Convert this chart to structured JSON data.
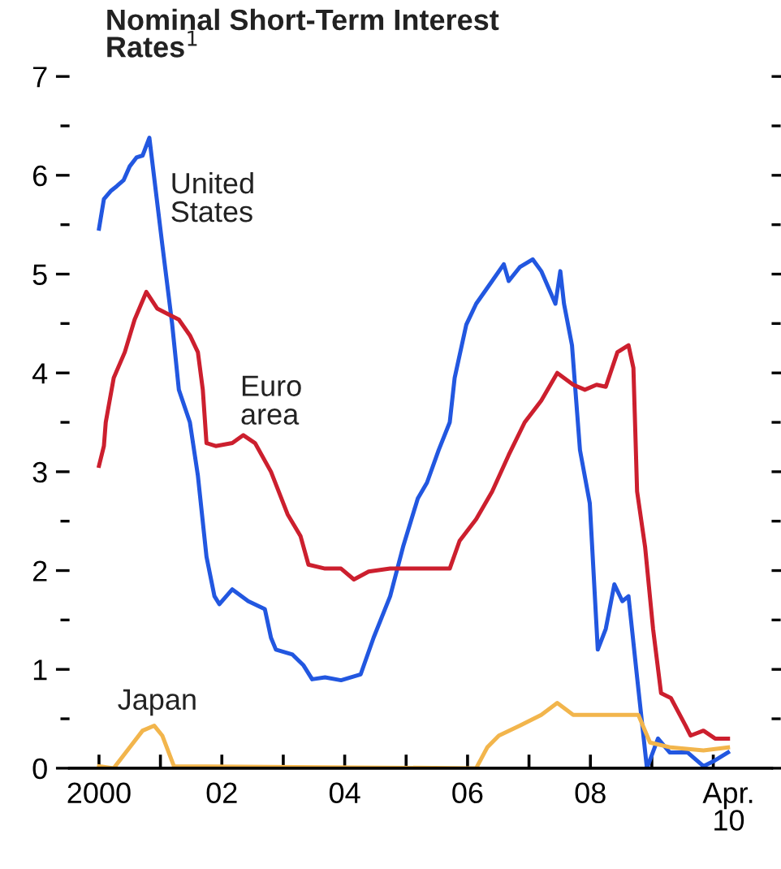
{
  "chart_data": {
    "type": "line",
    "title": "Nominal Short-Term Interest\nRates$^{1}$",
    "xlim": [
      1999.52,
      2010.95
    ],
    "ylim": [
      0,
      7
    ],
    "xticks": [
      2000,
      {
        "value": 2001,
        "label": null
      },
      {
        "value": 2002,
        "label": "02"
      },
      {
        "value": 2003,
        "label": null
      },
      {
        "value": 2004,
        "label": "04"
      },
      {
        "value": 2005,
        "label": null
      },
      {
        "value": 2006,
        "label": "06"
      },
      {
        "value": 2007,
        "label": null
      },
      {
        "value": 2008,
        "label": "08"
      },
      {
        "value": 2009,
        "label": null
      },
      {
        "value": 2010,
        "label": null
      },
      {
        "value": 2010.25,
        "label": "Apr.\n10"
      }
    ],
    "yticks": [
      0,
      {
        "value": 0.5,
        "label": null
      },
      1,
      {
        "value": 1.5,
        "label": null
      },
      2,
      {
        "value": 2.5,
        "label": null
      },
      3,
      {
        "value": 3.5,
        "label": null
      },
      4,
      {
        "value": 4.5,
        "label": null
      },
      5,
      {
        "value": 5.5,
        "label": null
      },
      6,
      {
        "value": 6.5,
        "label": null
      },
      7
    ],
    "grid": false,
    "legend": false,
    "series": [
      {
        "name": "United\nStates",
        "color": "#2257e0",
        "x": [
          2000.0,
          2000.08,
          2000.19,
          2000.29,
          2000.4,
          2000.5,
          2000.61,
          2000.71,
          2000.82,
          2001.03,
          2001.19,
          2001.3,
          2001.48,
          2001.61,
          2001.75,
          2001.88,
          2001.96,
          2002.17,
          2002.43,
          2002.7,
          2002.8,
          2002.88,
          2003.15,
          2003.33,
          2003.47,
          2003.68,
          2003.94,
          2004.26,
          2004.47,
          2004.74,
          2004.95,
          2005.19,
          2005.34,
          2005.53,
          2005.71,
          2005.79,
          2005.98,
          2006.14,
          2006.4,
          2006.59,
          2006.67,
          2006.85,
          2007.06,
          2007.2,
          2007.43,
          2007.51,
          2007.57,
          2007.7,
          2007.83,
          2007.99,
          2008.12,
          2008.25,
          2008.39,
          2008.52,
          2008.62,
          2008.76,
          2008.92,
          2009.1,
          2009.29,
          2009.58,
          2009.84,
          2010.03,
          2010.24
        ],
        "values": [
          5.46,
          5.76,
          5.84,
          5.89,
          5.95,
          6.09,
          6.18,
          6.2,
          6.38,
          5.3,
          4.5,
          3.83,
          3.5,
          2.96,
          2.14,
          1.74,
          1.66,
          1.81,
          1.69,
          1.61,
          1.32,
          1.2,
          1.15,
          1.04,
          0.9,
          0.92,
          0.89,
          0.95,
          1.32,
          1.74,
          2.24,
          2.73,
          2.89,
          3.22,
          3.5,
          3.95,
          4.49,
          4.7,
          4.93,
          5.1,
          4.93,
          5.07,
          5.15,
          5.03,
          4.7,
          5.03,
          4.7,
          4.28,
          3.22,
          2.68,
          1.2,
          1.41,
          1.86,
          1.69,
          1.74,
          0.92,
          0.0,
          0.3,
          0.16,
          0.16,
          0.02,
          0.08,
          0.16
        ]
      },
      {
        "name": "Euro\narea",
        "color": "#cc1f2e",
        "x": [
          2000.0,
          2000.08,
          2000.11,
          2000.24,
          2000.42,
          2000.58,
          2000.77,
          2000.95,
          2001.11,
          2001.3,
          2001.48,
          2001.61,
          2001.69,
          2001.75,
          2001.9,
          2002.17,
          2002.35,
          2002.54,
          2002.8,
          2003.07,
          2003.28,
          2003.41,
          2003.68,
          2003.94,
          2004.15,
          2004.39,
          2004.74,
          2005.34,
          2005.71,
          2005.87,
          2006.14,
          2006.4,
          2006.67,
          2006.93,
          2007.2,
          2007.46,
          2007.72,
          2007.91,
          2008.1,
          2008.25,
          2008.44,
          2008.62,
          2008.7,
          2008.76,
          2008.89,
          2009.02,
          2009.15,
          2009.31,
          2009.55,
          2009.63,
          2009.84,
          2010.03,
          2010.24
        ],
        "values": [
          3.06,
          3.26,
          3.5,
          3.95,
          4.21,
          4.54,
          4.82,
          4.65,
          4.6,
          4.54,
          4.38,
          4.21,
          3.83,
          3.29,
          3.26,
          3.29,
          3.37,
          3.29,
          3.0,
          2.57,
          2.35,
          2.06,
          2.02,
          2.02,
          1.91,
          1.99,
          2.02,
          2.02,
          2.02,
          2.3,
          2.52,
          2.8,
          3.17,
          3.5,
          3.72,
          4.0,
          3.88,
          3.83,
          3.88,
          3.86,
          4.21,
          4.28,
          4.05,
          2.8,
          2.24,
          1.41,
          0.76,
          0.71,
          0.43,
          0.33,
          0.38,
          0.3,
          0.3
        ]
      },
      {
        "name": "Japan",
        "color": "#f2b54c",
        "x": [
          2000.0,
          2000.24,
          2000.5,
          2000.71,
          2000.9,
          2001.03,
          2001.22,
          2006.14,
          2006.32,
          2006.51,
          2006.85,
          2007.2,
          2007.46,
          2007.72,
          2008.1,
          2008.78,
          2008.97,
          2009.31,
          2009.84,
          2010.24
        ],
        "values": [
          0.02,
          0.0,
          0.21,
          0.38,
          0.43,
          0.33,
          0.02,
          0.0,
          0.21,
          0.33,
          0.43,
          0.54,
          0.66,
          0.54,
          0.54,
          0.54,
          0.26,
          0.21,
          0.18,
          0.21
        ]
      }
    ]
  }
}
